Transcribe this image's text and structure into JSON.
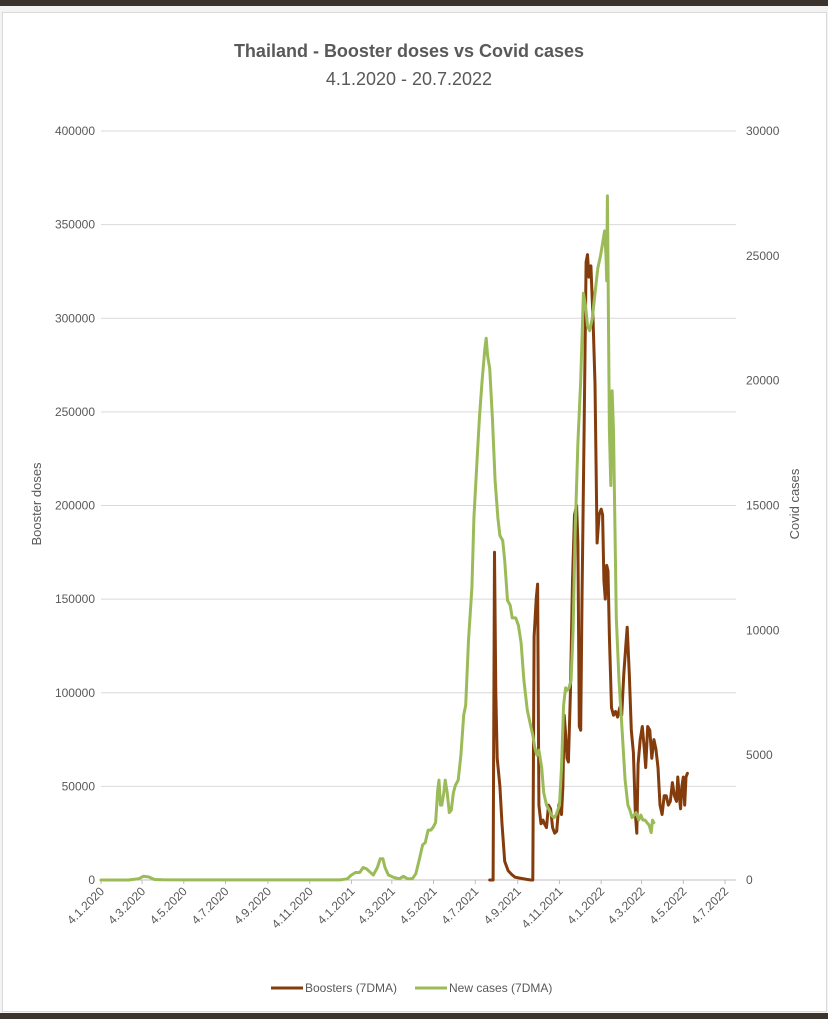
{
  "chart_data": {
    "type": "line",
    "title": "Thailand - Booster doses vs Covid cases",
    "subtitle": "4.1.2020 - 20.7.2022",
    "y_left_label": "Booster doses",
    "y_right_label": "Covid cases",
    "y_left_ticks": [
      "0",
      "50000",
      "100000",
      "150000",
      "200000",
      "250000",
      "300000",
      "350000",
      "400000"
    ],
    "y_right_ticks": [
      "0",
      "5000",
      "10000",
      "15000",
      "20000",
      "25000",
      "30000"
    ],
    "y_left_range": [
      0,
      400000
    ],
    "y_right_range": [
      0,
      30000
    ],
    "x_range_days": [
      0,
      928
    ],
    "x_ticks": [
      {
        "label": "4.1.2020",
        "day": 0
      },
      {
        "label": "4.3.2020",
        "day": 60
      },
      {
        "label": "4.5.2020",
        "day": 121
      },
      {
        "label": "4.7.2020",
        "day": 182
      },
      {
        "label": "4.9.2020",
        "day": 244
      },
      {
        "label": "4.11.2020",
        "day": 305
      },
      {
        "label": "4.1.2021",
        "day": 366
      },
      {
        "label": "4.3.2021",
        "day": 425
      },
      {
        "label": "4.5.2021",
        "day": 486
      },
      {
        "label": "4.7.2021",
        "day": 547
      },
      {
        "label": "4.9.2021",
        "day": 609
      },
      {
        "label": "4.11.2021",
        "day": 670
      },
      {
        "label": "4.1.2022",
        "day": 731
      },
      {
        "label": "4.3.2022",
        "day": 790
      },
      {
        "label": "4.5.2022",
        "day": 851
      },
      {
        "label": "4.7.2022",
        "day": 912
      }
    ],
    "grid": true,
    "legend_position": "bottom",
    "series": [
      {
        "name": "Boosters (7DMA)",
        "axis": "left",
        "color": "#843c0c",
        "points": [
          [
            568,
            0
          ],
          [
            573,
            0
          ],
          [
            575,
            175000
          ],
          [
            577,
            100000
          ],
          [
            579,
            65000
          ],
          [
            583,
            50000
          ],
          [
            586,
            30000
          ],
          [
            590,
            10000
          ],
          [
            595,
            5000
          ],
          [
            600,
            3000
          ],
          [
            605,
            1500
          ],
          [
            612,
            1000
          ],
          [
            620,
            500
          ],
          [
            628,
            0
          ],
          [
            631,
            0
          ],
          [
            633,
            130000
          ],
          [
            636,
            150000
          ],
          [
            638,
            158000
          ],
          [
            640,
            40000
          ],
          [
            643,
            30000
          ],
          [
            646,
            32000
          ],
          [
            648,
            30000
          ],
          [
            651,
            28000
          ],
          [
            654,
            40000
          ],
          [
            657,
            38000
          ],
          [
            660,
            28000
          ],
          [
            663,
            25000
          ],
          [
            666,
            26000
          ],
          [
            669,
            40000
          ],
          [
            671,
            42000
          ],
          [
            673,
            35000
          ],
          [
            675,
            50000
          ],
          [
            677,
            88000
          ],
          [
            679,
            78000
          ],
          [
            681,
            65000
          ],
          [
            683,
            63000
          ],
          [
            686,
            100000
          ],
          [
            689,
            160000
          ],
          [
            692,
            195000
          ],
          [
            695,
            200000
          ],
          [
            697,
            180000
          ],
          [
            699,
            82000
          ],
          [
            701,
            80000
          ],
          [
            703,
            150000
          ],
          [
            706,
            240000
          ],
          [
            709,
            330000
          ],
          [
            711,
            334000
          ],
          [
            713,
            322000
          ],
          [
            716,
            328000
          ],
          [
            719,
            300000
          ],
          [
            722,
            265000
          ],
          [
            725,
            180000
          ],
          [
            728,
            195000
          ],
          [
            731,
            198000
          ],
          [
            733,
            195000
          ],
          [
            735,
            160000
          ],
          [
            737,
            150000
          ],
          [
            739,
            168000
          ],
          [
            741,
            165000
          ],
          [
            743,
            130000
          ],
          [
            746,
            92000
          ],
          [
            749,
            88000
          ],
          [
            752,
            90000
          ],
          [
            755,
            87000
          ],
          [
            758,
            92000
          ],
          [
            761,
            88000
          ],
          [
            764,
            110000
          ],
          [
            767,
            125000
          ],
          [
            769,
            135000
          ],
          [
            772,
            110000
          ],
          [
            775,
            80000
          ],
          [
            778,
            68000
          ],
          [
            781,
            35000
          ],
          [
            783,
            25000
          ],
          [
            785,
            62000
          ],
          [
            788,
            75000
          ],
          [
            791,
            82000
          ],
          [
            794,
            70000
          ],
          [
            796,
            60000
          ],
          [
            799,
            82000
          ],
          [
            802,
            80000
          ],
          [
            805,
            65000
          ],
          [
            808,
            75000
          ],
          [
            811,
            70000
          ],
          [
            814,
            60000
          ],
          [
            817,
            40000
          ],
          [
            820,
            35000
          ],
          [
            823,
            45000
          ],
          [
            826,
            45000
          ],
          [
            829,
            40000
          ],
          [
            832,
            42000
          ],
          [
            835,
            52000
          ],
          [
            838,
            45000
          ],
          [
            841,
            42000
          ],
          [
            843,
            55000
          ],
          [
            845,
            45000
          ],
          [
            847,
            38000
          ],
          [
            849,
            50000
          ],
          [
            851,
            55000
          ],
          [
            853,
            40000
          ],
          [
            855,
            55000
          ],
          [
            857,
            57000
          ]
        ]
      },
      {
        "name": "New cases (7DMA)",
        "axis": "right",
        "color": "#9bbb59",
        "points": [
          [
            0,
            0
          ],
          [
            40,
            0
          ],
          [
            55,
            50
          ],
          [
            62,
            150
          ],
          [
            70,
            120
          ],
          [
            78,
            20
          ],
          [
            90,
            10
          ],
          [
            120,
            5
          ],
          [
            180,
            5
          ],
          [
            240,
            5
          ],
          [
            300,
            5
          ],
          [
            350,
            5
          ],
          [
            360,
            50
          ],
          [
            366,
            200
          ],
          [
            372,
            300
          ],
          [
            378,
            300
          ],
          [
            383,
            500
          ],
          [
            388,
            450
          ],
          [
            392,
            350
          ],
          [
            398,
            200
          ],
          [
            404,
            500
          ],
          [
            408,
            850
          ],
          [
            412,
            850
          ],
          [
            415,
            500
          ],
          [
            420,
            200
          ],
          [
            428,
            100
          ],
          [
            436,
            50
          ],
          [
            442,
            150
          ],
          [
            448,
            50
          ],
          [
            455,
            50
          ],
          [
            460,
            250
          ],
          [
            465,
            800
          ],
          [
            470,
            1400
          ],
          [
            474,
            1500
          ],
          [
            478,
            2000
          ],
          [
            482,
            2000
          ],
          [
            485,
            2100
          ],
          [
            489,
            2300
          ],
          [
            492,
            3600
          ],
          [
            494,
            4000
          ],
          [
            496,
            3000
          ],
          [
            498,
            3000
          ],
          [
            501,
            3500
          ],
          [
            503,
            4000
          ],
          [
            506,
            3500
          ],
          [
            509,
            2700
          ],
          [
            512,
            2800
          ],
          [
            515,
            3500
          ],
          [
            518,
            3800
          ],
          [
            522,
            4000
          ],
          [
            526,
            5000
          ],
          [
            530,
            6600
          ],
          [
            533,
            7000
          ],
          [
            537,
            9600
          ],
          [
            542,
            11700
          ],
          [
            545,
            14500
          ],
          [
            550,
            17000
          ],
          [
            553,
            18500
          ],
          [
            557,
            20000
          ],
          [
            561,
            21300
          ],
          [
            563,
            21700
          ],
          [
            565,
            21000
          ],
          [
            568,
            20500
          ],
          [
            572,
            18500
          ],
          [
            576,
            16000
          ],
          [
            580,
            14500
          ],
          [
            583,
            13800
          ],
          [
            587,
            13600
          ],
          [
            590,
            12800
          ],
          [
            594,
            11200
          ],
          [
            598,
            11000
          ],
          [
            601,
            10500
          ],
          [
            606,
            10500
          ],
          [
            610,
            10200
          ],
          [
            614,
            9500
          ],
          [
            618,
            8000
          ],
          [
            623,
            6800
          ],
          [
            627,
            6300
          ],
          [
            631,
            5800
          ],
          [
            634,
            5300
          ],
          [
            637,
            5000
          ],
          [
            640,
            5200
          ],
          [
            644,
            4500
          ],
          [
            647,
            3500
          ],
          [
            651,
            3000
          ],
          [
            655,
            2800
          ],
          [
            658,
            2600
          ],
          [
            662,
            2500
          ],
          [
            665,
            2600
          ],
          [
            670,
            3000
          ],
          [
            673,
            4500
          ],
          [
            676,
            7000
          ],
          [
            679,
            7700
          ],
          [
            681,
            7600
          ],
          [
            684,
            7700
          ],
          [
            687,
            8000
          ],
          [
            690,
            10000
          ],
          [
            693,
            14000
          ],
          [
            697,
            17500
          ],
          [
            701,
            20000
          ],
          [
            705,
            23500
          ],
          [
            708,
            23000
          ],
          [
            711,
            22200
          ],
          [
            714,
            22000
          ],
          [
            718,
            22500
          ],
          [
            722,
            23500
          ],
          [
            726,
            24500
          ],
          [
            730,
            25000
          ],
          [
            733,
            25500
          ],
          [
            736,
            26000
          ],
          [
            738,
            25000
          ],
          [
            739,
            24000
          ],
          [
            740,
            27400
          ],
          [
            743,
            18000
          ],
          [
            745,
            15800
          ],
          [
            747,
            19600
          ],
          [
            749,
            18000
          ],
          [
            753,
            10500
          ],
          [
            757,
            8000
          ],
          [
            762,
            5800
          ],
          [
            766,
            4000
          ],
          [
            770,
            3000
          ],
          [
            773,
            2800
          ],
          [
            776,
            2500
          ],
          [
            779,
            2600
          ],
          [
            782,
            2700
          ],
          [
            786,
            2400
          ],
          [
            789,
            2600
          ],
          [
            792,
            2400
          ],
          [
            795,
            2400
          ],
          [
            798,
            2300
          ],
          [
            801,
            2200
          ],
          [
            804,
            1900
          ],
          [
            806,
            2400
          ],
          [
            808,
            2300
          ]
        ]
      }
    ]
  }
}
